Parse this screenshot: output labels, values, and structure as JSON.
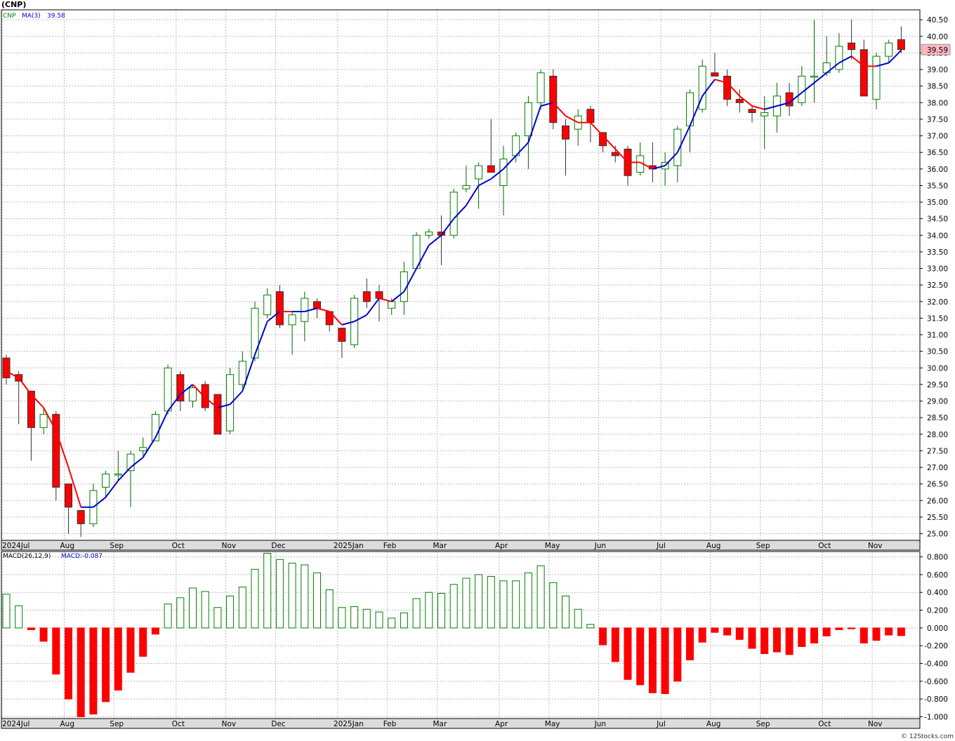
{
  "header": {
    "title": "(CNP)",
    "price_legend_symbol": "CNP",
    "price_legend_ma": "MA(3)",
    "price_legend_ma_value": "39.58",
    "macd_legend": "MACD(26,12,9)",
    "macd_legend_value": "MACD:-0.087",
    "footer": "© 12Stocks.com"
  },
  "colors": {
    "up": "#008000",
    "down": "#ff0000",
    "ma_up": "#0000cc",
    "ma_down": "#ff0000",
    "grid": "#bbbbbb",
    "last_price_box": "#ffb6c1"
  },
  "chart_data": [
    {
      "type": "candlestick",
      "title": "(CNP)",
      "ylim": [
        24.8,
        40.8
      ],
      "y_ticks": [
        "25.00",
        "25.50",
        "26.00",
        "26.50",
        "27.00",
        "27.50",
        "28.00",
        "28.50",
        "29.00",
        "29.50",
        "30.00",
        "30.50",
        "31.00",
        "31.50",
        "32.00",
        "32.50",
        "33.00",
        "33.50",
        "34.00",
        "34.50",
        "35.00",
        "35.50",
        "36.00",
        "36.50",
        "37.00",
        "37.50",
        "38.00",
        "38.50",
        "39.00",
        "39.50",
        "40.00",
        "40.50"
      ],
      "last_price_label": "39.59",
      "x_labels": [
        {
          "text": "2024Jul",
          "week": 0
        },
        {
          "text": "Aug",
          "week": 5
        },
        {
          "text": "Sep",
          "week": 9
        },
        {
          "text": "Oct",
          "week": 14
        },
        {
          "text": "Nov",
          "week": 18
        },
        {
          "text": "Dec",
          "week": 22
        },
        {
          "text": "2025Jan",
          "week": 27
        },
        {
          "text": "Feb",
          "week": 31
        },
        {
          "text": "Mar",
          "week": 35
        },
        {
          "text": "Apr",
          "week": 40
        },
        {
          "text": "May",
          "week": 44
        },
        {
          "text": "Jun",
          "week": 48
        },
        {
          "text": "Jul",
          "week": 53
        },
        {
          "text": "Aug",
          "week": 57
        },
        {
          "text": "Sep",
          "week": 61
        },
        {
          "text": "Oct",
          "week": 66
        },
        {
          "text": "Nov",
          "week": 70
        }
      ],
      "candles": [
        {
          "o": 30.3,
          "h": 30.4,
          "l": 29.5,
          "c": 29.7
        },
        {
          "o": 29.8,
          "h": 29.9,
          "l": 28.3,
          "c": 29.6
        },
        {
          "o": 29.3,
          "h": 29.3,
          "l": 27.2,
          "c": 28.2
        },
        {
          "o": 28.2,
          "h": 28.8,
          "l": 28.0,
          "c": 28.6
        },
        {
          "o": 28.6,
          "h": 28.7,
          "l": 26.0,
          "c": 26.4
        },
        {
          "o": 26.5,
          "h": 26.5,
          "l": 25.0,
          "c": 25.8
        },
        {
          "o": 25.7,
          "h": 25.7,
          "l": 24.9,
          "c": 25.3
        },
        {
          "o": 25.3,
          "h": 26.5,
          "l": 25.2,
          "c": 26.3
        },
        {
          "o": 26.4,
          "h": 26.9,
          "l": 26.1,
          "c": 26.8
        },
        {
          "o": 26.8,
          "h": 27.5,
          "l": 26.6,
          "c": 26.8
        },
        {
          "o": 26.9,
          "h": 27.5,
          "l": 25.8,
          "c": 27.4
        },
        {
          "o": 27.5,
          "h": 27.9,
          "l": 27.3,
          "c": 27.6
        },
        {
          "o": 27.8,
          "h": 28.7,
          "l": 27.8,
          "c": 28.6
        },
        {
          "o": 28.7,
          "h": 30.1,
          "l": 28.6,
          "c": 30.0
        },
        {
          "o": 29.8,
          "h": 29.9,
          "l": 28.7,
          "c": 29.0
        },
        {
          "o": 29.0,
          "h": 29.5,
          "l": 28.8,
          "c": 29.4
        },
        {
          "o": 29.5,
          "h": 29.6,
          "l": 28.7,
          "c": 28.8
        },
        {
          "o": 29.2,
          "h": 29.2,
          "l": 28.0,
          "c": 28.0
        },
        {
          "o": 28.1,
          "h": 30.0,
          "l": 28.0,
          "c": 29.8
        },
        {
          "o": 29.5,
          "h": 30.5,
          "l": 29.4,
          "c": 30.2
        },
        {
          "o": 30.3,
          "h": 32.0,
          "l": 30.2,
          "c": 31.8
        },
        {
          "o": 31.6,
          "h": 32.4,
          "l": 31.5,
          "c": 32.2
        },
        {
          "o": 32.3,
          "h": 32.5,
          "l": 31.2,
          "c": 31.3
        },
        {
          "o": 31.3,
          "h": 31.7,
          "l": 30.4,
          "c": 31.6
        },
        {
          "o": 31.4,
          "h": 32.3,
          "l": 30.8,
          "c": 32.1
        },
        {
          "o": 32.0,
          "h": 32.1,
          "l": 31.5,
          "c": 31.8
        },
        {
          "o": 31.7,
          "h": 31.7,
          "l": 31.1,
          "c": 31.3
        },
        {
          "o": 31.2,
          "h": 31.2,
          "l": 30.3,
          "c": 30.8
        },
        {
          "o": 30.7,
          "h": 32.2,
          "l": 30.6,
          "c": 32.1
        },
        {
          "o": 32.3,
          "h": 32.7,
          "l": 31.8,
          "c": 32.0
        },
        {
          "o": 32.3,
          "h": 32.5,
          "l": 31.4,
          "c": 32.1
        },
        {
          "o": 31.8,
          "h": 32.1,
          "l": 31.6,
          "c": 32.0
        },
        {
          "o": 32.0,
          "h": 33.2,
          "l": 31.6,
          "c": 32.9
        },
        {
          "o": 33.0,
          "h": 34.1,
          "l": 33.0,
          "c": 34.0
        },
        {
          "o": 34.0,
          "h": 34.2,
          "l": 33.9,
          "c": 34.1
        },
        {
          "o": 34.1,
          "h": 34.6,
          "l": 33.1,
          "c": 34.0
        },
        {
          "o": 34.0,
          "h": 35.4,
          "l": 33.9,
          "c": 35.3
        },
        {
          "o": 35.4,
          "h": 36.1,
          "l": 35.3,
          "c": 35.5
        },
        {
          "o": 35.7,
          "h": 36.2,
          "l": 34.8,
          "c": 36.1
        },
        {
          "o": 36.1,
          "h": 37.5,
          "l": 35.9,
          "c": 35.9
        },
        {
          "o": 35.5,
          "h": 36.7,
          "l": 34.6,
          "c": 36.3
        },
        {
          "o": 36.4,
          "h": 37.1,
          "l": 36.2,
          "c": 37.0
        },
        {
          "o": 37.0,
          "h": 38.2,
          "l": 36.0,
          "c": 38.0
        },
        {
          "o": 38.0,
          "h": 39.0,
          "l": 37.8,
          "c": 38.9
        },
        {
          "o": 38.8,
          "h": 39.0,
          "l": 37.2,
          "c": 37.4
        },
        {
          "o": 37.3,
          "h": 37.5,
          "l": 35.8,
          "c": 36.9
        },
        {
          "o": 37.2,
          "h": 37.8,
          "l": 36.7,
          "c": 37.6
        },
        {
          "o": 37.8,
          "h": 37.9,
          "l": 36.8,
          "c": 37.4
        },
        {
          "o": 37.1,
          "h": 37.1,
          "l": 36.5,
          "c": 36.7
        },
        {
          "o": 36.5,
          "h": 36.7,
          "l": 36.2,
          "c": 36.4
        },
        {
          "o": 36.6,
          "h": 36.7,
          "l": 35.5,
          "c": 35.8
        },
        {
          "o": 35.9,
          "h": 36.8,
          "l": 35.8,
          "c": 36.4
        },
        {
          "o": 36.1,
          "h": 36.8,
          "l": 35.6,
          "c": 36.0
        },
        {
          "o": 36.0,
          "h": 36.5,
          "l": 35.5,
          "c": 36.2
        },
        {
          "o": 36.1,
          "h": 37.3,
          "l": 35.6,
          "c": 37.2
        },
        {
          "o": 37.3,
          "h": 38.4,
          "l": 36.5,
          "c": 38.3
        },
        {
          "o": 37.8,
          "h": 39.3,
          "l": 37.7,
          "c": 39.1
        },
        {
          "o": 38.9,
          "h": 39.5,
          "l": 38.8,
          "c": 38.8
        },
        {
          "o": 38.8,
          "h": 39.0,
          "l": 37.9,
          "c": 38.1
        },
        {
          "o": 38.1,
          "h": 38.4,
          "l": 37.7,
          "c": 38.0
        },
        {
          "o": 37.8,
          "h": 37.9,
          "l": 37.4,
          "c": 37.7
        },
        {
          "o": 37.6,
          "h": 38.2,
          "l": 36.6,
          "c": 37.7
        },
        {
          "o": 37.6,
          "h": 38.6,
          "l": 37.1,
          "c": 38.2
        },
        {
          "o": 38.3,
          "h": 38.6,
          "l": 37.6,
          "c": 37.9
        },
        {
          "o": 38.0,
          "h": 39.1,
          "l": 37.9,
          "c": 38.8
        },
        {
          "o": 38.8,
          "h": 40.5,
          "l": 38.0,
          "c": 38.8
        },
        {
          "o": 38.9,
          "h": 40.0,
          "l": 38.8,
          "c": 39.2
        },
        {
          "o": 39.0,
          "h": 40.1,
          "l": 38.9,
          "c": 39.7
        },
        {
          "o": 39.8,
          "h": 40.5,
          "l": 39.3,
          "c": 39.6
        },
        {
          "o": 39.6,
          "h": 39.9,
          "l": 38.2,
          "c": 38.2
        },
        {
          "o": 38.1,
          "h": 39.5,
          "l": 37.8,
          "c": 39.4
        },
        {
          "o": 39.4,
          "h": 39.9,
          "l": 39.2,
          "c": 39.8
        },
        {
          "o": 39.9,
          "h": 40.3,
          "l": 39.5,
          "c": 39.6
        }
      ],
      "ma3": [
        29.9,
        29.7,
        29.2,
        28.8,
        28.1,
        27.0,
        25.8,
        25.8,
        26.1,
        26.6,
        27.0,
        27.3,
        27.9,
        28.7,
        29.2,
        29.5,
        29.1,
        28.8,
        28.9,
        29.3,
        30.4,
        31.4,
        31.7,
        31.7,
        31.7,
        31.8,
        31.7,
        31.3,
        31.4,
        31.6,
        32.1,
        32.0,
        32.3,
        33.0,
        33.7,
        34.0,
        34.5,
        34.9,
        35.5,
        35.7,
        36.0,
        36.4,
        36.8,
        37.9,
        38.0,
        37.6,
        37.4,
        37.4,
        37.0,
        36.6,
        36.2,
        36.2,
        36.0,
        36.1,
        36.5,
        37.3,
        38.2,
        38.7,
        38.6,
        38.2,
        37.9,
        37.8,
        37.9,
        38.0,
        38.3,
        38.6,
        38.9,
        39.2,
        39.4,
        39.1,
        39.1,
        39.2,
        39.58
      ],
      "ma3_color": [
        "down",
        "down",
        "down",
        "down",
        "down",
        "down",
        "down",
        "up",
        "up",
        "up",
        "up",
        "up",
        "up",
        "up",
        "up",
        "up",
        "down",
        "down",
        "up",
        "up",
        "up",
        "up",
        "up",
        "down",
        "up",
        "up",
        "down",
        "down",
        "up",
        "up",
        "up",
        "down",
        "up",
        "up",
        "up",
        "up",
        "up",
        "up",
        "up",
        "up",
        "up",
        "up",
        "up",
        "up",
        "up",
        "down",
        "down",
        "down",
        "down",
        "down",
        "down",
        "down",
        "down",
        "up",
        "up",
        "up",
        "up",
        "up",
        "down",
        "down",
        "down",
        "down",
        "up",
        "up",
        "up",
        "up",
        "up",
        "up",
        "up",
        "down",
        "down",
        "up",
        "up"
      ]
    },
    {
      "type": "bar",
      "title": "MACD(26,12,9)",
      "ylim": [
        -1.02,
        0.86
      ],
      "y_ticks": [
        "0.800",
        "0.600",
        "0.400",
        "0.200",
        "0.000",
        "-0.200",
        "-0.400",
        "-0.600",
        "-0.800",
        "-1.000"
      ],
      "values": [
        0.38,
        0.25,
        -0.02,
        -0.15,
        -0.52,
        -0.8,
        -1.0,
        -0.97,
        -0.83,
        -0.7,
        -0.5,
        -0.32,
        -0.07,
        0.27,
        0.34,
        0.45,
        0.41,
        0.23,
        0.36,
        0.46,
        0.66,
        0.84,
        0.77,
        0.73,
        0.71,
        0.62,
        0.43,
        0.23,
        0.24,
        0.21,
        0.18,
        0.11,
        0.17,
        0.33,
        0.4,
        0.39,
        0.49,
        0.56,
        0.6,
        0.58,
        0.53,
        0.53,
        0.62,
        0.7,
        0.51,
        0.36,
        0.21,
        0.04,
        -0.19,
        -0.38,
        -0.58,
        -0.64,
        -0.73,
        -0.74,
        -0.6,
        -0.36,
        -0.16,
        -0.05,
        -0.08,
        -0.13,
        -0.23,
        -0.29,
        -0.27,
        -0.3,
        -0.21,
        -0.17,
        -0.09,
        -0.02,
        -0.01,
        -0.17,
        -0.14,
        -0.08,
        -0.087
      ]
    }
  ]
}
